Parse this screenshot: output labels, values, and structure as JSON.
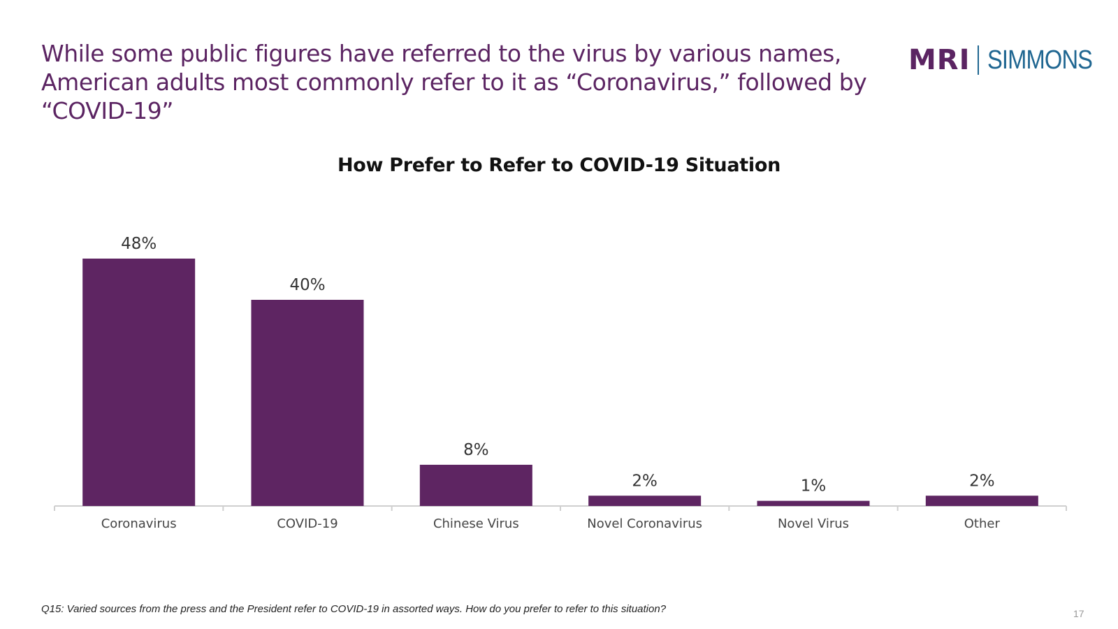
{
  "slide": {
    "headline": "While some public figures have referred to the virus by various names, American adults most commonly refer to it as “Coronavirus,” followed by “COVID-19”",
    "logo": {
      "part1": "MRI",
      "part2": "SIMMONS"
    },
    "footnote": "Q15: Varied sources from the press and the President refer to COVID-19 in assorted ways. How do you prefer to refer to this situation?",
    "page_number": "17"
  },
  "colors": {
    "bar": "#5e2562",
    "headline": "#5b2462",
    "logo_secondary": "#1f6691"
  },
  "chart_data": {
    "type": "bar",
    "title": "How Prefer to Refer to COVID-19 Situation",
    "categories": [
      "Coronavirus",
      "COVID-19",
      "Chinese Virus",
      "Novel Coronavirus",
      "Novel Virus",
      "Other"
    ],
    "values": [
      48,
      40,
      8,
      2,
      1,
      2
    ],
    "data_labels": [
      "48%",
      "40%",
      "8%",
      "2%",
      "1%",
      "2%"
    ],
    "unit": "%",
    "ylim": [
      0,
      48
    ],
    "grid": false,
    "legend": "none"
  }
}
